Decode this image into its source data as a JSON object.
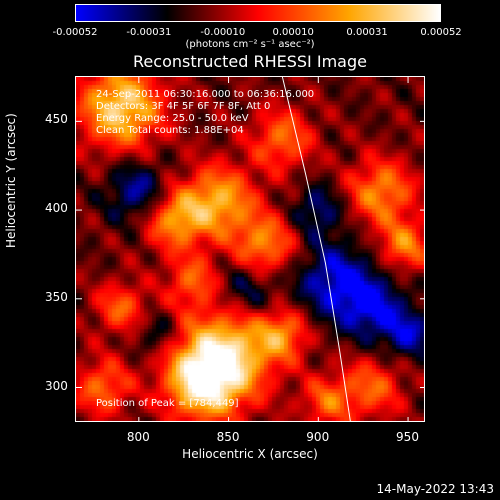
{
  "chart_data": {
    "type": "heatmap",
    "title": "Reconstructed RHESSI Image",
    "xlabel": "Heliocentric X (arcsec)",
    "ylabel": "Heliocentric Y (arcsec)",
    "xlim": [
      765,
      960
    ],
    "ylim": [
      280,
      475
    ],
    "x_ticks": [
      "800",
      "850",
      "900",
      "950"
    ],
    "y_ticks": [
      "300",
      "350",
      "400",
      "450"
    ],
    "x_tick_values": [
      800,
      850,
      900,
      950
    ],
    "y_tick_values": [
      300,
      350,
      400,
      450
    ],
    "colorbar": {
      "ticks": [
        "-0.00052",
        "-0.00031",
        "-0.00010",
        "0.00010",
        "0.00031",
        "0.00052"
      ],
      "tick_values": [
        -0.00052,
        -0.00031,
        -0.0001,
        0.0001,
        0.00031,
        0.00052
      ],
      "units": "(photons cm⁻² s⁻¹ asec⁻²)",
      "colors": [
        "#0000ff",
        "#000000",
        "#ff0000",
        "#ffa500",
        "#ffffff"
      ]
    },
    "annotations": [
      "24-Sep-2011 06:30:16.000 to 06:36:16.000",
      "Detectors: 3F 4F 5F 6F 7F 8F, Att 0",
      "Energy Range: 25.0 - 50.0 keV",
      "Clean    Total counts: 1.88E+04"
    ],
    "peak_label": "Position of Peak = [784,449]",
    "peak_position": [
      784,
      449
    ],
    "limb_curve": [
      [
        880,
        475
      ],
      [
        893,
        420
      ],
      [
        904,
        370
      ],
      [
        912,
        320
      ],
      [
        918,
        280
      ]
    ],
    "blobs": [
      {
        "x": 848,
        "y": 318,
        "amp": 1.0,
        "r": 18
      },
      {
        "x": 835,
        "y": 302,
        "amp": 0.9,
        "r": 14
      },
      {
        "x": 790,
        "y": 458,
        "amp": 0.95,
        "r": 16
      },
      {
        "x": 845,
        "y": 405,
        "amp": 0.75,
        "r": 14
      },
      {
        "x": 820,
        "y": 395,
        "amp": 0.7,
        "r": 12
      },
      {
        "x": 870,
        "y": 380,
        "amp": 0.65,
        "r": 12
      },
      {
        "x": 935,
        "y": 410,
        "amp": 0.65,
        "r": 13
      },
      {
        "x": 948,
        "y": 380,
        "amp": 0.6,
        "r": 10
      },
      {
        "x": 880,
        "y": 440,
        "amp": 0.55,
        "r": 12
      },
      {
        "x": 790,
        "y": 345,
        "amp": 0.5,
        "r": 10
      },
      {
        "x": 880,
        "y": 330,
        "amp": 0.6,
        "r": 10
      },
      {
        "x": 930,
        "y": 300,
        "amp": 0.5,
        "r": 12
      },
      {
        "x": 905,
        "y": 292,
        "amp": 0.5,
        "r": 10
      },
      {
        "x": 780,
        "y": 300,
        "amp": 0.55,
        "r": 11
      },
      {
        "x": 830,
        "y": 360,
        "amp": 0.5,
        "r": 10
      },
      {
        "x": 910,
        "y": 360,
        "amp": -0.6,
        "r": 15
      },
      {
        "x": 930,
        "y": 345,
        "amp": -0.55,
        "r": 12
      },
      {
        "x": 800,
        "y": 410,
        "amp": -0.5,
        "r": 12
      },
      {
        "x": 860,
        "y": 355,
        "amp": -0.35,
        "r": 12
      },
      {
        "x": 950,
        "y": 330,
        "amp": -0.5,
        "r": 10
      },
      {
        "x": 900,
        "y": 400,
        "amp": -0.4,
        "r": 10
      },
      {
        "x": 810,
        "y": 330,
        "amp": -0.3,
        "r": 8
      }
    ]
  },
  "footer": {
    "timestamp": "14-May-2022 13:43"
  }
}
